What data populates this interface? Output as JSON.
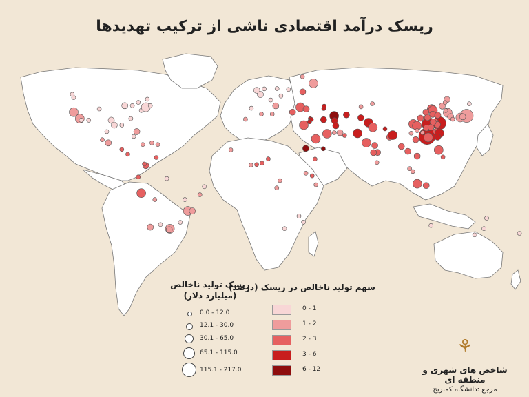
{
  "title": "ریسک درآمد اقتصادی ناشی از ترکیب تهدیدها",
  "legend_size": {
    "title_line1": "ریسک تولید ناخالص",
    "title_line2": "(میلیارد دلار)",
    "classes": [
      {
        "label": "0.0 - 12.0"
      },
      {
        "label": "12.1 - 30.0"
      },
      {
        "label": "30.1 - 65.0"
      },
      {
        "label": "65.1 - 115.0"
      },
      {
        "label": "115.1 - 217.0"
      }
    ]
  },
  "legend_pct": {
    "title": "سهم تولید ناخالص در ریسک (درصد)",
    "classes": [
      {
        "label": "0 - 1",
        "color": "#f8d6d6"
      },
      {
        "label": "1 - 2",
        "color": "#ef9c9c"
      },
      {
        "label": "2 - 3",
        "color": "#e66060"
      },
      {
        "label": "3 - 6",
        "color": "#c81e1e"
      },
      {
        "label": "6 - 12",
        "color": "#8e0d0d"
      }
    ]
  },
  "brand": {
    "org": "شاخص های شهری و منطقه ای",
    "ref": "مرجع :دانشگاه کمبریج"
  },
  "map": {
    "land_color": "#ffffff",
    "background_color": "#f2e7d6",
    "border_color": "#777777",
    "cities": [
      {
        "lon": -122,
        "lat": 47,
        "size": 1,
        "cls": 0
      },
      {
        "lon": -122,
        "lat": 38,
        "size": 3,
        "cls": 1
      },
      {
        "lon": -118,
        "lat": 34,
        "size": 3,
        "cls": 1
      },
      {
        "lon": -117,
        "lat": 33,
        "size": 1,
        "cls": 0
      },
      {
        "lon": -112,
        "lat": 33,
        "size": 1,
        "cls": 0
      },
      {
        "lon": -105,
        "lat": 40,
        "size": 1,
        "cls": 0
      },
      {
        "lon": -97,
        "lat": 33,
        "size": 2,
        "cls": 0
      },
      {
        "lon": -95,
        "lat": 30,
        "size": 2,
        "cls": 0
      },
      {
        "lon": -90,
        "lat": 30,
        "size": 1,
        "cls": 0
      },
      {
        "lon": -88,
        "lat": 42,
        "size": 2,
        "cls": 0
      },
      {
        "lon": -84,
        "lat": 34,
        "size": 1,
        "cls": 0
      },
      {
        "lon": -80,
        "lat": 26,
        "size": 2,
        "cls": 1
      },
      {
        "lon": -77,
        "lat": 39,
        "size": 1,
        "cls": 0
      },
      {
        "lon": -74,
        "lat": 41,
        "size": 3,
        "cls": 0
      },
      {
        "lon": -71,
        "lat": 42,
        "size": 1,
        "cls": 0
      },
      {
        "lon": -79,
        "lat": 44,
        "size": 1,
        "cls": 0
      },
      {
        "lon": -73,
        "lat": 46,
        "size": 1,
        "cls": 0
      },
      {
        "lon": -123,
        "lat": 49,
        "size": 1,
        "cls": 0
      },
      {
        "lon": -83,
        "lat": 42,
        "size": 1,
        "cls": 0
      },
      {
        "lon": -99,
        "lat": 19,
        "size": 2,
        "cls": 1
      },
      {
        "lon": -103,
        "lat": 21,
        "size": 1,
        "cls": 1
      },
      {
        "lon": -100,
        "lat": 26,
        "size": 1,
        "cls": 0
      },
      {
        "lon": -90,
        "lat": 15,
        "size": 1,
        "cls": 2
      },
      {
        "lon": -86,
        "lat": 12,
        "size": 1,
        "cls": 2
      },
      {
        "lon": -82,
        "lat": 23,
        "size": 1,
        "cls": 0
      },
      {
        "lon": -76,
        "lat": 18,
        "size": 1,
        "cls": 1
      },
      {
        "lon": -70,
        "lat": 19,
        "size": 1,
        "cls": 1
      },
      {
        "lon": -66,
        "lat": 18,
        "size": 1,
        "cls": 1
      },
      {
        "lon": -74,
        "lat": 5,
        "size": 2,
        "cls": 2
      },
      {
        "lon": -75,
        "lat": 6,
        "size": 1,
        "cls": 2
      },
      {
        "lon": -67,
        "lat": 10,
        "size": 1,
        "cls": 2
      },
      {
        "lon": -79,
        "lat": -2,
        "size": 1,
        "cls": 2
      },
      {
        "lon": -77,
        "lat": -12,
        "size": 3,
        "cls": 2
      },
      {
        "lon": -68,
        "lat": -16,
        "size": 1,
        "cls": 1
      },
      {
        "lon": -71,
        "lat": -33,
        "size": 2,
        "cls": 1
      },
      {
        "lon": -58,
        "lat": -34,
        "size": 3,
        "cls": 1
      },
      {
        "lon": -46,
        "lat": -23,
        "size": 3,
        "cls": 1
      },
      {
        "lon": -43,
        "lat": -23,
        "size": 2,
        "cls": 1
      },
      {
        "lon": -38,
        "lat": -13,
        "size": 1,
        "cls": 1
      },
      {
        "lon": -35,
        "lat": -8,
        "size": 1,
        "cls": 0
      },
      {
        "lon": -48,
        "lat": -16,
        "size": 1,
        "cls": 0
      },
      {
        "lon": -60,
        "lat": -3,
        "size": 1,
        "cls": 0
      },
      {
        "lon": -51,
        "lat": -30,
        "size": 1,
        "cls": 0
      },
      {
        "lon": -0.1,
        "lat": 51.5,
        "size": 2,
        "cls": 0
      },
      {
        "lon": 2.3,
        "lat": 48.9,
        "size": 2,
        "cls": 0
      },
      {
        "lon": -3.7,
        "lat": 40.4,
        "size": 1,
        "cls": 0
      },
      {
        "lon": 12.5,
        "lat": 41.9,
        "size": 2,
        "cls": 1
      },
      {
        "lon": 9.2,
        "lat": 45.5,
        "size": 1,
        "cls": 0
      },
      {
        "lon": 13.4,
        "lat": 52.5,
        "size": 1,
        "cls": 0
      },
      {
        "lon": 4.9,
        "lat": 52.4,
        "size": 1,
        "cls": 0
      },
      {
        "lon": 21,
        "lat": 52,
        "size": 1,
        "cls": 0
      },
      {
        "lon": 16,
        "lat": 48,
        "size": 1,
        "cls": 0
      },
      {
        "lon": 23.7,
        "lat": 38,
        "size": 2,
        "cls": 2
      },
      {
        "lon": 28.9,
        "lat": 41,
        "size": 3,
        "cls": 2
      },
      {
        "lon": 32.8,
        "lat": 39.9,
        "size": 2,
        "cls": 2
      },
      {
        "lon": 30.5,
        "lat": 50.5,
        "size": 2,
        "cls": 2
      },
      {
        "lon": 37.6,
        "lat": 55.8,
        "size": 3,
        "cls": 1
      },
      {
        "lon": 30.3,
        "lat": 59.9,
        "size": 1,
        "cls": 1
      },
      {
        "lon": 44.5,
        "lat": 40.2,
        "size": 1,
        "cls": 3
      },
      {
        "lon": 44.8,
        "lat": 41.7,
        "size": 1,
        "cls": 3
      },
      {
        "lon": 31.2,
        "lat": 30,
        "size": 3,
        "cls": 2
      },
      {
        "lon": 35.5,
        "lat": 33.9,
        "size": 1,
        "cls": 3
      },
      {
        "lon": 36.3,
        "lat": 33.5,
        "size": 1,
        "cls": 3
      },
      {
        "lon": 35,
        "lat": 32,
        "size": 1,
        "cls": 3
      },
      {
        "lon": 44.4,
        "lat": 33.3,
        "size": 2,
        "cls": 3
      },
      {
        "lon": 51.4,
        "lat": 35.7,
        "size": 3,
        "cls": 4
      },
      {
        "lon": 59.6,
        "lat": 36.3,
        "size": 2,
        "cls": 3
      },
      {
        "lon": 51.7,
        "lat": 32.7,
        "size": 2,
        "cls": 3
      },
      {
        "lon": 52.5,
        "lat": 29.6,
        "size": 2,
        "cls": 3
      },
      {
        "lon": 46.7,
        "lat": 24.7,
        "size": 3,
        "cls": 2
      },
      {
        "lon": 39.2,
        "lat": 21.5,
        "size": 3,
        "cls": 2
      },
      {
        "lon": 55.3,
        "lat": 25.3,
        "size": 2,
        "cls": 1
      },
      {
        "lon": 51.5,
        "lat": 25.3,
        "size": 1,
        "cls": 1
      },
      {
        "lon": 58.4,
        "lat": 23.6,
        "size": 1,
        "cls": 2
      },
      {
        "lon": 44.2,
        "lat": 15.4,
        "size": 1,
        "cls": 4
      },
      {
        "lon": 32.5,
        "lat": 15.6,
        "size": 2,
        "cls": 4
      },
      {
        "lon": 38.7,
        "lat": 9,
        "size": 1,
        "cls": 2
      },
      {
        "lon": 36.8,
        "lat": -1.3,
        "size": 1,
        "cls": 2
      },
      {
        "lon": 39.3,
        "lat": -6.8,
        "size": 1,
        "cls": 1
      },
      {
        "lon": 32.6,
        "lat": 0.3,
        "size": 1,
        "cls": 1
      },
      {
        "lon": 3.4,
        "lat": 6.5,
        "size": 1,
        "cls": 2
      },
      {
        "lon": 7.5,
        "lat": 9.1,
        "size": 1,
        "cls": 2
      },
      {
        "lon": -0.2,
        "lat": 5.6,
        "size": 1,
        "cls": 2
      },
      {
        "lon": -4,
        "lat": 5.3,
        "size": 1,
        "cls": 1
      },
      {
        "lon": -17.4,
        "lat": 14.7,
        "size": 1,
        "cls": 1
      },
      {
        "lon": 15.3,
        "lat": -4.3,
        "size": 1,
        "cls": 1
      },
      {
        "lon": 13.2,
        "lat": -8.8,
        "size": 1,
        "cls": 1
      },
      {
        "lon": 28,
        "lat": -26.2,
        "size": 1,
        "cls": 0
      },
      {
        "lon": 18.4,
        "lat": -33.9,
        "size": 1,
        "cls": 0
      },
      {
        "lon": 31,
        "lat": -29.9,
        "size": 1,
        "cls": 0
      },
      {
        "lon": 3,
        "lat": 36.8,
        "size": 1,
        "cls": 1
      },
      {
        "lon": -7.6,
        "lat": 33.6,
        "size": 1,
        "cls": 1
      },
      {
        "lon": 10.2,
        "lat": 36.8,
        "size": 1,
        "cls": 1
      },
      {
        "lon": 69.2,
        "lat": 34.5,
        "size": 2,
        "cls": 3
      },
      {
        "lon": 67,
        "lat": 24.9,
        "size": 3,
        "cls": 3
      },
      {
        "lon": 74.3,
        "lat": 31.5,
        "size": 3,
        "cls": 3
      },
      {
        "lon": 77.2,
        "lat": 28.6,
        "size": 3,
        "cls": 2
      },
      {
        "lon": 72.9,
        "lat": 19.1,
        "size": 3,
        "cls": 2
      },
      {
        "lon": 88.4,
        "lat": 22.6,
        "size": 2,
        "cls": 2
      },
      {
        "lon": 80.3,
        "lat": 13.1,
        "size": 2,
        "cls": 2
      },
      {
        "lon": 77.6,
        "lat": 13,
        "size": 2,
        "cls": 2
      },
      {
        "lon": 78.5,
        "lat": 17.4,
        "size": 2,
        "cls": 2
      },
      {
        "lon": 90.4,
        "lat": 23.8,
        "size": 3,
        "cls": 3
      },
      {
        "lon": 85.3,
        "lat": 27.7,
        "size": 1,
        "cls": 3
      },
      {
        "lon": 79.9,
        "lat": 6.9,
        "size": 1,
        "cls": 1
      },
      {
        "lon": 69.3,
        "lat": 41.3,
        "size": 1,
        "cls": 1
      },
      {
        "lon": 76.9,
        "lat": 43.2,
        "size": 1,
        "cls": 1
      },
      {
        "lon": 96.2,
        "lat": 16.8,
        "size": 2,
        "cls": 2
      },
      {
        "lon": 100.5,
        "lat": 13.8,
        "size": 2,
        "cls": 2
      },
      {
        "lon": 106.7,
        "lat": 10.8,
        "size": 2,
        "cls": 2
      },
      {
        "lon": 105.8,
        "lat": 21,
        "size": 2,
        "cls": 2
      },
      {
        "lon": 101.7,
        "lat": 3.1,
        "size": 1,
        "cls": 1
      },
      {
        "lon": 103.8,
        "lat": 1.3,
        "size": 1,
        "cls": 1
      },
      {
        "lon": 106.8,
        "lat": -6.2,
        "size": 3,
        "cls": 2
      },
      {
        "lon": 112.7,
        "lat": -7.3,
        "size": 2,
        "cls": 2
      },
      {
        "lon": 121,
        "lat": 14.6,
        "size": 3,
        "cls": 2
      },
      {
        "lon": 123.9,
        "lat": 10.3,
        "size": 1,
        "cls": 2
      },
      {
        "lon": 116.4,
        "lat": 39.9,
        "size": 3,
        "cls": 2
      },
      {
        "lon": 117.2,
        "lat": 39.1,
        "size": 3,
        "cls": 2
      },
      {
        "lon": 121.5,
        "lat": 31.2,
        "size": 4,
        "cls": 3
      },
      {
        "lon": 113.3,
        "lat": 23.1,
        "size": 5,
        "cls": 3
      },
      {
        "lon": 114.1,
        "lat": 22.4,
        "size": 3,
        "cls": 2
      },
      {
        "lon": 114.3,
        "lat": 30.6,
        "size": 4,
        "cls": 3
      },
      {
        "lon": 104.1,
        "lat": 30.7,
        "size": 3,
        "cls": 2
      },
      {
        "lon": 106.5,
        "lat": 29.6,
        "size": 3,
        "cls": 2
      },
      {
        "lon": 108.9,
        "lat": 34.3,
        "size": 2,
        "cls": 2
      },
      {
        "lon": 112.5,
        "lat": 37.9,
        "size": 2,
        "cls": 2
      },
      {
        "lon": 117,
        "lat": 36.7,
        "size": 2,
        "cls": 2
      },
      {
        "lon": 120.4,
        "lat": 36.1,
        "size": 2,
        "cls": 2
      },
      {
        "lon": 118.8,
        "lat": 32,
        "size": 2,
        "cls": 2
      },
      {
        "lon": 120.2,
        "lat": 30.3,
        "size": 2,
        "cls": 2
      },
      {
        "lon": 119.3,
        "lat": 26.1,
        "size": 2,
        "cls": 2
      },
      {
        "lon": 113.6,
        "lat": 34.7,
        "size": 2,
        "cls": 2
      },
      {
        "lon": 123.4,
        "lat": 41.8,
        "size": 2,
        "cls": 1
      },
      {
        "lon": 126.6,
        "lat": 45.8,
        "size": 2,
        "cls": 1
      },
      {
        "lon": 125.3,
        "lat": 43.9,
        "size": 1,
        "cls": 1
      },
      {
        "lon": 102.7,
        "lat": 25,
        "size": 1,
        "cls": 1
      },
      {
        "lon": 106.7,
        "lat": 26.6,
        "size": 1,
        "cls": 1
      },
      {
        "lon": 110.3,
        "lat": 25.3,
        "size": 1,
        "cls": 1
      },
      {
        "lon": 112.9,
        "lat": 28.2,
        "size": 2,
        "cls": 2
      },
      {
        "lon": 115.9,
        "lat": 28.7,
        "size": 2,
        "cls": 2
      },
      {
        "lon": 117.3,
        "lat": 31.9,
        "size": 2,
        "cls": 2
      },
      {
        "lon": 121.5,
        "lat": 25,
        "size": 3,
        "cls": 3
      },
      {
        "lon": 120.3,
        "lat": 22.6,
        "size": 2,
        "cls": 3
      },
      {
        "lon": 127,
        "lat": 37.6,
        "size": 3,
        "cls": 1
      },
      {
        "lon": 129,
        "lat": 35.2,
        "size": 2,
        "cls": 1
      },
      {
        "lon": 125.8,
        "lat": 39,
        "size": 1,
        "cls": 1
      },
      {
        "lon": 139.7,
        "lat": 35.7,
        "size": 4,
        "cls": 1
      },
      {
        "lon": 135.5,
        "lat": 34.7,
        "size": 3,
        "cls": 1
      },
      {
        "lon": 137,
        "lat": 35.2,
        "size": 2,
        "cls": 1
      },
      {
        "lon": 130.4,
        "lat": 33.6,
        "size": 1,
        "cls": 1
      },
      {
        "lon": 141.4,
        "lat": 43.1,
        "size": 1,
        "cls": 0
      },
      {
        "lon": 151.2,
        "lat": -33.9,
        "size": 1,
        "cls": 0
      },
      {
        "lon": 145,
        "lat": -37.8,
        "size": 1,
        "cls": 0
      },
      {
        "lon": 153,
        "lat": -27.5,
        "size": 1,
        "cls": 0
      },
      {
        "lon": 115.9,
        "lat": -32,
        "size": 1,
        "cls": 0
      },
      {
        "lon": 174.8,
        "lat": -36.8,
        "size": 1,
        "cls": 0
      },
      {
        "lon": -58.4,
        "lat": -34.6,
        "size": 2,
        "cls": 1
      },
      {
        "lon": -64.2,
        "lat": -31.4,
        "size": 1,
        "cls": 0
      }
    ]
  }
}
